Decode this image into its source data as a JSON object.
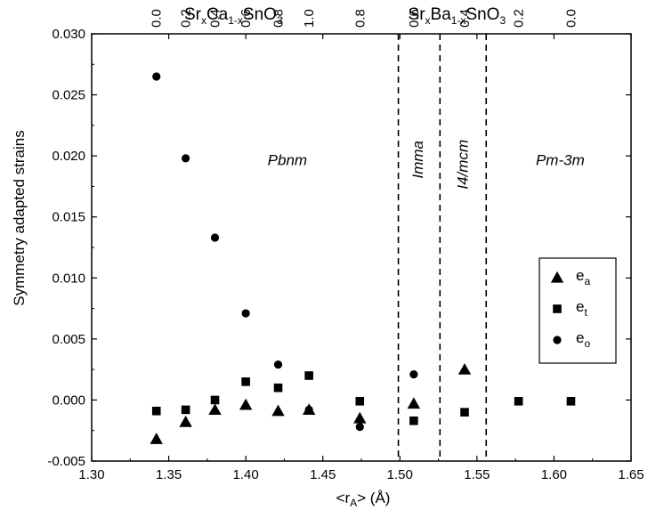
{
  "chart_data": {
    "type": "scatter",
    "xlabel": "<r",
    "xlabel_sub": "A",
    "xlabel_unit": "> (Å)",
    "ylabel": "Symmetry adapted strains",
    "xlim": [
      1.3,
      1.65
    ],
    "ylim": [
      -0.005,
      0.03
    ],
    "x_ticks": [
      "1.30",
      "1.35",
      "1.40",
      "1.45",
      "1.50",
      "1.55",
      "1.60",
      "1.65"
    ],
    "y_ticks": [
      "-0.005",
      "0.000",
      "0.005",
      "0.010",
      "0.015",
      "0.020",
      "0.025",
      "0.030"
    ],
    "grid": false,
    "legend_position": "right",
    "series": [
      {
        "name": "e",
        "subscript": "a",
        "marker": "triangle",
        "points": [
          {
            "x": 1.342,
            "y": -0.0032
          },
          {
            "x": 1.361,
            "y": -0.0018
          },
          {
            "x": 1.38,
            "y": -0.0008
          },
          {
            "x": 1.4,
            "y": -0.0004
          },
          {
            "x": 1.421,
            "y": -0.0009
          },
          {
            "x": 1.441,
            "y": -0.0008
          },
          {
            "x": 1.474,
            "y": -0.0015
          },
          {
            "x": 1.509,
            "y": -0.0003
          },
          {
            "x": 1.542,
            "y": 0.0025
          }
        ]
      },
      {
        "name": "e",
        "subscript": "t",
        "marker": "square",
        "points": [
          {
            "x": 1.342,
            "y": -0.0009
          },
          {
            "x": 1.361,
            "y": -0.0008
          },
          {
            "x": 1.38,
            "y": 0.0
          },
          {
            "x": 1.4,
            "y": 0.0015
          },
          {
            "x": 1.421,
            "y": 0.001
          },
          {
            "x": 1.441,
            "y": 0.002
          },
          {
            "x": 1.474,
            "y": -0.0001
          },
          {
            "x": 1.509,
            "y": -0.0017
          },
          {
            "x": 1.542,
            "y": -0.001
          },
          {
            "x": 1.577,
            "y": -0.0001
          },
          {
            "x": 1.611,
            "y": -0.0001
          }
        ]
      },
      {
        "name": "e",
        "subscript": "o",
        "marker": "circle",
        "points": [
          {
            "x": 1.342,
            "y": 0.0265
          },
          {
            "x": 1.361,
            "y": 0.0198
          },
          {
            "x": 1.38,
            "y": 0.0133
          },
          {
            "x": 1.4,
            "y": 0.0071
          },
          {
            "x": 1.421,
            "y": 0.0029
          },
          {
            "x": 1.441,
            "y": -0.0008
          },
          {
            "x": 1.474,
            "y": -0.0022
          },
          {
            "x": 1.509,
            "y": 0.0021
          }
        ]
      }
    ],
    "phase_boundaries": [
      1.499,
      1.526,
      1.556
    ],
    "phase_labels": [
      {
        "text": "Pbnm",
        "x": 1.427,
        "y": 0.0197,
        "rotated": false
      },
      {
        "text": "Imma",
        "x": 1.512,
        "y": 0.0197,
        "rotated": true
      },
      {
        "text": "I4/mcm",
        "x": 1.541,
        "y": 0.0193,
        "rotated": true
      },
      {
        "text": "Pm-3m",
        "x": 1.604,
        "y": 0.0197,
        "rotated": false
      }
    ],
    "top_axis": {
      "compositions": [
        {
          "label": {
            "a": "Sr",
            "a_sub": "x",
            "b": "Ca",
            "b_sub": "1-x",
            "c": "SnO",
            "c_sub": "3"
          },
          "x": 1.392
        },
        {
          "label": {
            "a": "Sr",
            "a_sub": "x",
            "b": "Ba",
            "b_sub": "1-x",
            "c": "SnO",
            "c_sub": "3"
          },
          "x": 1.537
        }
      ],
      "ticks": [
        {
          "x": 1.342,
          "label": "0.0"
        },
        {
          "x": 1.361,
          "label": "0.2"
        },
        {
          "x": 1.38,
          "label": "0.4"
        },
        {
          "x": 1.4,
          "label": "0.6"
        },
        {
          "x": 1.421,
          "label": "0.8"
        },
        {
          "x": 1.441,
          "label": "1.0"
        },
        {
          "x": 1.474,
          "label": "0.8"
        },
        {
          "x": 1.509,
          "label": "0.6"
        },
        {
          "x": 1.542,
          "label": "0.4"
        },
        {
          "x": 1.577,
          "label": "0.2"
        },
        {
          "x": 1.611,
          "label": "0.0"
        }
      ]
    }
  }
}
